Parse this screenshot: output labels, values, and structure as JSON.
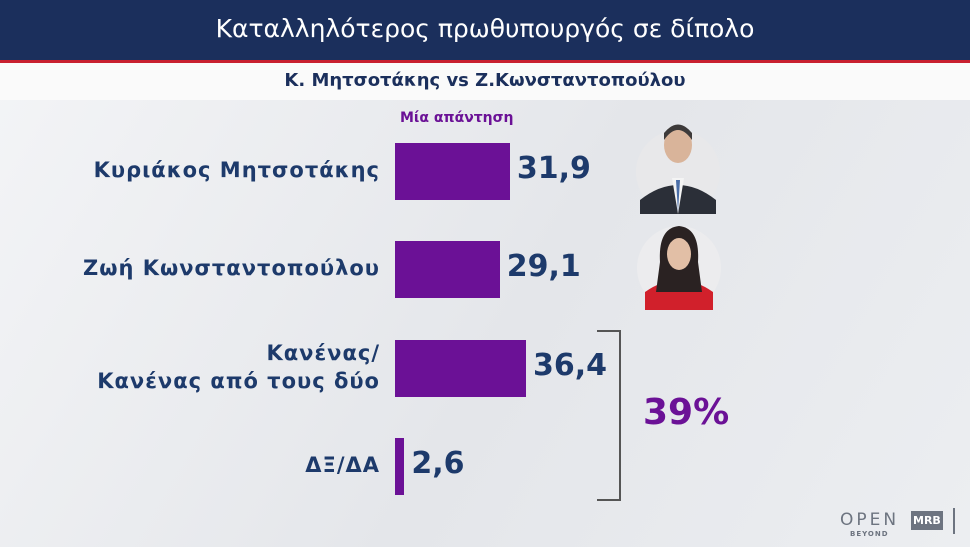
{
  "chart_data": {
    "type": "bar",
    "orientation": "horizontal",
    "title": "Καταλληλότερος πρωθυπουργός σε δίπολο",
    "subtitle": "Κ. Μητσοτάκης vs Ζ.Κωνσταντοπούλου",
    "series_name": "Μία απάντηση",
    "categories": [
      "Κυριάκος Μητσοτάκης",
      "Ζωή Κωνσταντοπούλου",
      "Κανένας/\nΚανένας από τους δύο",
      "ΔΞ/ΔΑ"
    ],
    "values": [
      31.9,
      29.1,
      36.4,
      2.6
    ],
    "value_labels": [
      "31,9",
      "29,1",
      "36,4",
      "2,6"
    ],
    "color": "#6b1196",
    "annotation": "39%",
    "logos": [
      "OPEN",
      "BEYOND",
      "MRB"
    ]
  }
}
